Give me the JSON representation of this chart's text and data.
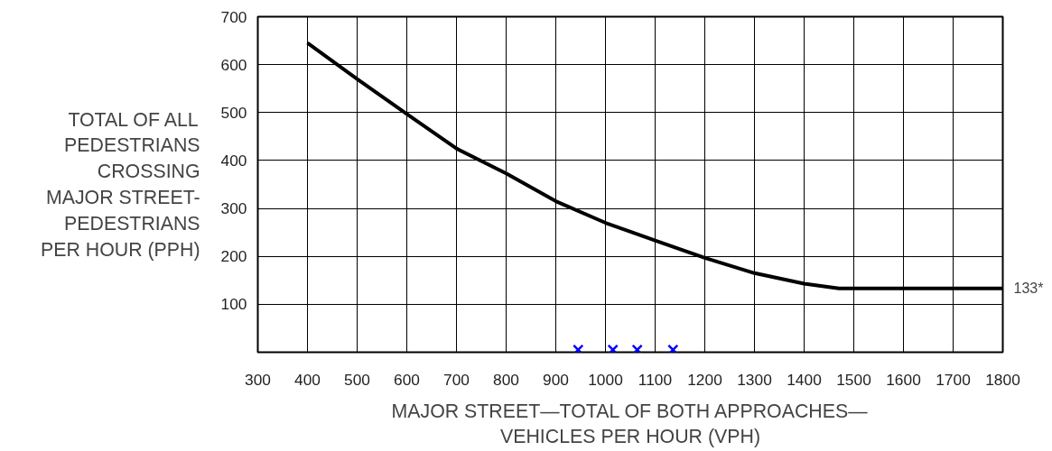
{
  "chart_data": {
    "type": "line",
    "xlabel": "MAJOR STREET—TOTAL OF BOTH APPROACHES—\nVEHICLES PER HOUR (VPH)",
    "ylabel": "TOTAL OF ALL\nPEDESTRIANS\nCROSSING\nMAJOR STREET-\nPEDESTRIANS\nPER HOUR (PPH)",
    "xlim": [
      300,
      1800
    ],
    "ylim": [
      0,
      700
    ],
    "xticks": [
      300,
      400,
      500,
      600,
      700,
      800,
      900,
      1000,
      1100,
      1200,
      1300,
      1400,
      1500,
      1600,
      1700,
      1800
    ],
    "yticks": [
      {
        "value": 0,
        "label": null
      },
      100,
      200,
      300,
      400,
      500,
      600,
      700
    ],
    "grid": true,
    "series": [
      {
        "type": "line",
        "color": "#000000",
        "marker": "none",
        "line_style": "solid",
        "x": [
          400,
          500,
          600,
          700,
          800,
          900,
          1000,
          1100,
          1200,
          1300,
          1400,
          1470,
          1800
        ],
        "values": [
          645,
          570,
          497,
          425,
          373,
          315,
          270,
          233,
          197,
          165,
          143,
          133,
          133
        ]
      },
      {
        "type": "scatter",
        "color": "#0000ff",
        "marker": "cross",
        "x": [
          945,
          1015,
          1064,
          1136
        ],
        "values": [
          5,
          5,
          5,
          5
        ]
      }
    ],
    "annotations": [
      {
        "text": "133*",
        "x": 1800,
        "y": 133
      }
    ]
  }
}
